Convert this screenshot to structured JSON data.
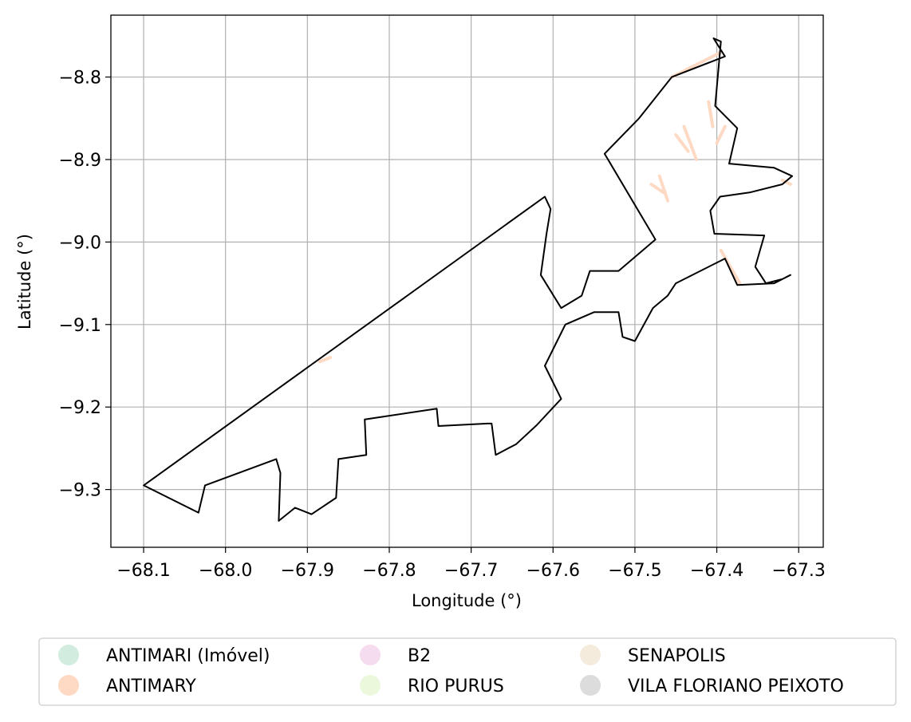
{
  "chart_data": {
    "type": "map",
    "xlabel": "Longitude (°)",
    "ylabel": "Latitude (°)",
    "xlim": [
      -68.14,
      -67.27
    ],
    "ylim": [
      -9.37,
      -8.725
    ],
    "grid": true,
    "x_ticks": [
      "−68.1",
      "−68.0",
      "−67.9",
      "−67.8",
      "−67.7",
      "−67.6",
      "−67.5",
      "−67.4",
      "−67.3"
    ],
    "y_ticks": [
      "−8.8",
      "−8.9",
      "−9.0",
      "−9.1",
      "−9.2",
      "−9.3"
    ],
    "legend_position": "bottom",
    "legend": [
      {
        "label": "ANTIMARI (Imóvel)",
        "color": "#d2ede0"
      },
      {
        "label": "ANTIMARY",
        "color": "#fed9c4"
      },
      {
        "label": "B2",
        "color": "#f6dcef"
      },
      {
        "label": "RIO PURUS",
        "color": "#ecf8dc"
      },
      {
        "label": "SENAPOLIS",
        "color": "#f5ebdc"
      },
      {
        "label": "VILA FLORIANO PEIXOTO",
        "color": "#dcdcdc"
      }
    ],
    "boundary": {
      "stroke": "#000000",
      "points": [
        [
          -68.1,
          -9.295
        ],
        [
          -67.61,
          -8.945
        ],
        [
          -67.603,
          -8.96
        ],
        [
          -67.608,
          -8.99
        ],
        [
          -67.615,
          -9.04
        ],
        [
          -67.59,
          -9.08
        ],
        [
          -67.565,
          -9.065
        ],
        [
          -67.555,
          -9.035
        ],
        [
          -67.52,
          -9.035
        ],
        [
          -67.475,
          -8.997
        ],
        [
          -67.537,
          -8.893
        ],
        [
          -67.495,
          -8.85
        ],
        [
          -67.455,
          -8.8
        ],
        [
          -67.39,
          -8.775
        ],
        [
          -67.404,
          -8.753
        ],
        [
          -67.395,
          -8.757
        ],
        [
          -67.402,
          -8.835
        ],
        [
          -67.375,
          -8.862
        ],
        [
          -67.385,
          -8.905
        ],
        [
          -67.33,
          -8.91
        ],
        [
          -67.308,
          -8.92
        ],
        [
          -67.32,
          -8.93
        ],
        [
          -67.36,
          -8.94
        ],
        [
          -67.396,
          -8.945
        ],
        [
          -67.408,
          -8.962
        ],
        [
          -67.403,
          -8.99
        ],
        [
          -67.342,
          -8.992
        ],
        [
          -67.353,
          -9.03
        ],
        [
          -67.34,
          -9.05
        ],
        [
          -67.32,
          -9.045
        ],
        [
          -67.31,
          -9.04
        ],
        [
          -67.33,
          -9.05
        ],
        [
          -67.375,
          -9.052
        ],
        [
          -67.39,
          -9.02
        ],
        [
          -67.45,
          -9.05
        ],
        [
          -67.46,
          -9.065
        ],
        [
          -67.478,
          -9.08
        ],
        [
          -67.5,
          -9.12
        ],
        [
          -67.515,
          -9.115
        ],
        [
          -67.52,
          -9.085
        ],
        [
          -67.55,
          -9.085
        ],
        [
          -67.585,
          -9.1
        ],
        [
          -67.61,
          -9.15
        ],
        [
          -67.59,
          -9.19
        ],
        [
          -67.62,
          -9.222
        ],
        [
          -67.645,
          -9.245
        ],
        [
          -67.67,
          -9.258
        ],
        [
          -67.675,
          -9.22
        ],
        [
          -67.68,
          -9.22
        ],
        [
          -67.74,
          -9.223
        ],
        [
          -67.742,
          -9.202
        ],
        [
          -67.83,
          -9.215
        ],
        [
          -67.828,
          -9.258
        ],
        [
          -67.862,
          -9.263
        ],
        [
          -67.865,
          -9.31
        ],
        [
          -67.895,
          -9.33
        ],
        [
          -67.915,
          -9.322
        ],
        [
          -67.935,
          -9.338
        ],
        [
          -67.933,
          -9.28
        ],
        [
          -67.938,
          -9.263
        ],
        [
          -68.025,
          -9.295
        ],
        [
          -68.033,
          -9.328
        ],
        [
          -68.1,
          -9.295
        ]
      ]
    },
    "parcels": {
      "color": "#fed9c4",
      "segments": [
        [
          [
            -67.395,
            -8.77
          ],
          [
            -67.455,
            -8.8
          ]
        ],
        [
          [
            -67.41,
            -8.83
          ],
          [
            -67.405,
            -8.86
          ]
        ],
        [
          [
            -67.44,
            -8.86
          ],
          [
            -67.425,
            -8.9
          ]
        ],
        [
          [
            -67.47,
            -8.92
          ],
          [
            -67.46,
            -8.95
          ]
        ],
        [
          [
            -67.48,
            -8.93
          ],
          [
            -67.465,
            -8.94
          ]
        ],
        [
          [
            -67.45,
            -8.87
          ],
          [
            -67.435,
            -8.89
          ]
        ],
        [
          [
            -67.4,
            -8.88
          ],
          [
            -67.39,
            -8.86
          ]
        ],
        [
          [
            -67.32,
            -8.925
          ],
          [
            -67.31,
            -8.93
          ]
        ],
        [
          [
            -67.395,
            -9.01
          ],
          [
            -67.372,
            -9.05
          ]
        ],
        [
          [
            -67.885,
            -9.145
          ],
          [
            -67.872,
            -9.14
          ]
        ]
      ]
    }
  }
}
